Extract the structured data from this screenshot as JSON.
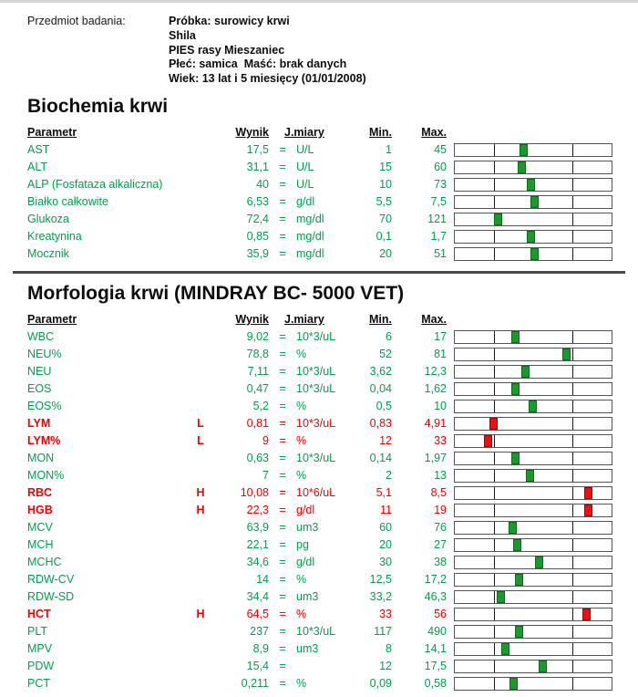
{
  "header": {
    "label": "Przedmiot badania:",
    "info_lines": [
      "Próbka: surowicy krwi",
      "Shila",
      "PIES rasy Mieszaniec",
      "Płeć: samica  Maść: brak danych",
      "Wiek: 13 lat i 5 miesięcy (01/01/2008)"
    ]
  },
  "columns": {
    "parametr": "Parametr",
    "wynik": "Wynik",
    "jmiary": "J.miary",
    "min": "Min.",
    "max": "Max."
  },
  "colors": {
    "text_green": "#00a050",
    "text_red": "#f40000",
    "marker_green": "#199b2b",
    "marker_red": "#ee1010",
    "divider_gray": "#4a4a4a"
  },
  "sections": [
    {
      "title": "Biochemia krwi",
      "divider_before": false,
      "rows": [
        {
          "param": "AST",
          "flag": "",
          "value": "17,5",
          "eq": "=",
          "unit": "U/L",
          "min": "1",
          "max": "45",
          "status": "normal",
          "bar_pos": 43.8
        },
        {
          "param": "ALT",
          "flag": "",
          "value": "31,1",
          "eq": "=",
          "unit": "U/L",
          "min": "15",
          "max": "60",
          "status": "normal",
          "bar_pos": 42.9
        },
        {
          "param": "ALP (Fosfataza alkaliczna)",
          "flag": "",
          "value": "40",
          "eq": "=",
          "unit": "U/L",
          "min": "10",
          "max": "73",
          "status": "normal",
          "bar_pos": 48.8
        },
        {
          "param": "Białko całkowite",
          "flag": "",
          "value": "6,53",
          "eq": "=",
          "unit": "g/dl",
          "min": "5,5",
          "max": "7,5",
          "status": "normal",
          "bar_pos": 50.8
        },
        {
          "param": "Glukoza",
          "flag": "",
          "value": "72,4",
          "eq": "=",
          "unit": "mg/dl",
          "min": "70",
          "max": "121",
          "status": "normal",
          "bar_pos": 27.4
        },
        {
          "param": "Kreatynina",
          "flag": "",
          "value": "0,85",
          "eq": "=",
          "unit": "mg/dl",
          "min": "0,1",
          "max": "1,7",
          "status": "normal",
          "bar_pos": 48.4
        },
        {
          "param": "Mocznik",
          "flag": "",
          "value": "35,9",
          "eq": "=",
          "unit": "mg/dl",
          "min": "20",
          "max": "51",
          "status": "normal",
          "bar_pos": 50.6
        }
      ]
    },
    {
      "title": "Morfologia krwi (MINDRAY BC- 5000 VET)",
      "divider_before": true,
      "rows": [
        {
          "param": "WBC",
          "flag": "",
          "value": "9,02",
          "eq": "=",
          "unit": "10*3/uL",
          "min": "6",
          "max": "17",
          "status": "normal",
          "bar_pos": 38.7
        },
        {
          "param": "NEU%",
          "flag": "",
          "value": "78,8",
          "eq": "=",
          "unit": "%",
          "min": "52",
          "max": "81",
          "status": "normal",
          "bar_pos": 71.2
        },
        {
          "param": "NEU",
          "flag": "",
          "value": "7,11",
          "eq": "=",
          "unit": "10*3/uL",
          "min": "3,62",
          "max": "12,3",
          "status": "normal",
          "bar_pos": 45.1
        },
        {
          "param": "EOS",
          "flag": "",
          "value": "0,47",
          "eq": "=",
          "unit": "10*3/uL",
          "min": "0,04",
          "max": "1,62",
          "status": "normal",
          "bar_pos": 38.6
        },
        {
          "param": "EOS%",
          "flag": "",
          "value": "5,2",
          "eq": "=",
          "unit": "%",
          "min": "0,5",
          "max": "10",
          "status": "normal",
          "bar_pos": 49.7
        },
        {
          "param": "LYM",
          "flag": "L",
          "value": "0,81",
          "eq": "=",
          "unit": "10*3/uL",
          "min": "0,83",
          "max": "4,91",
          "status": "low",
          "bar_pos": 24.7
        },
        {
          "param": "LYM%",
          "flag": "L",
          "value": "9",
          "eq": "=",
          "unit": "%",
          "min": "12",
          "max": "33",
          "status": "low",
          "bar_pos": 21.3
        },
        {
          "param": "MON",
          "flag": "",
          "value": "0,63",
          "eq": "=",
          "unit": "10*3/uL",
          "min": "0,14",
          "max": "1,97",
          "status": "normal",
          "bar_pos": 38.4
        },
        {
          "param": "MON%",
          "flag": "",
          "value": "7",
          "eq": "=",
          "unit": "%",
          "min": "2",
          "max": "13",
          "status": "normal",
          "bar_pos": 47.7
        },
        {
          "param": "RBC",
          "flag": "H",
          "value": "10,08",
          "eq": "=",
          "unit": "10*6/uL",
          "min": "5,1",
          "max": "8,5",
          "status": "high",
          "bar_pos": 85.0
        },
        {
          "param": "HGB",
          "flag": "H",
          "value": "22,3",
          "eq": "=",
          "unit": "g/dl",
          "min": "11",
          "max": "19",
          "status": "high",
          "bar_pos": 85.0
        },
        {
          "param": "MCV",
          "flag": "",
          "value": "63,9",
          "eq": "=",
          "unit": "um3",
          "min": "60",
          "max": "76",
          "status": "normal",
          "bar_pos": 37.2
        },
        {
          "param": "MCH",
          "flag": "",
          "value": "22,1",
          "eq": "=",
          "unit": "pg",
          "min": "20",
          "max": "27",
          "status": "normal",
          "bar_pos": 40.0
        },
        {
          "param": "MCHC",
          "flag": "",
          "value": "34,6",
          "eq": "=",
          "unit": "g/dl",
          "min": "30",
          "max": "38",
          "status": "normal",
          "bar_pos": 53.8
        },
        {
          "param": "RDW-CV",
          "flag": "",
          "value": "14",
          "eq": "=",
          "unit": "%",
          "min": "12,5",
          "max": "17,2",
          "status": "normal",
          "bar_pos": 41.0
        },
        {
          "param": "RDW-SD",
          "flag": "",
          "value": "34,4",
          "eq": "=",
          "unit": "um3",
          "min": "33,2",
          "max": "46,3",
          "status": "normal",
          "bar_pos": 29.6
        },
        {
          "param": "HCT",
          "flag": "H",
          "value": "64,5",
          "eq": "=",
          "unit": "%",
          "min": "33",
          "max": "56",
          "status": "high",
          "bar_pos": 84.0
        },
        {
          "param": "PLT",
          "flag": "",
          "value": "237",
          "eq": "=",
          "unit": "10*3/uL",
          "min": "117",
          "max": "490",
          "status": "normal",
          "bar_pos": 41.1
        },
        {
          "param": "MPV",
          "flag": "",
          "value": "8,9",
          "eq": "=",
          "unit": "um3",
          "min": "8",
          "max": "14,1",
          "status": "normal",
          "bar_pos": 32.4
        },
        {
          "param": "PDW",
          "flag": "",
          "value": "15,4",
          "eq": "=",
          "unit": "",
          "min": "12",
          "max": "17,5",
          "status": "normal",
          "bar_pos": 55.9
        },
        {
          "param": "PCT",
          "flag": "",
          "value": "0,211",
          "eq": "=",
          "unit": "%",
          "min": "0,09",
          "max": "0,58",
          "status": "normal",
          "bar_pos": 37.3
        }
      ]
    }
  ]
}
